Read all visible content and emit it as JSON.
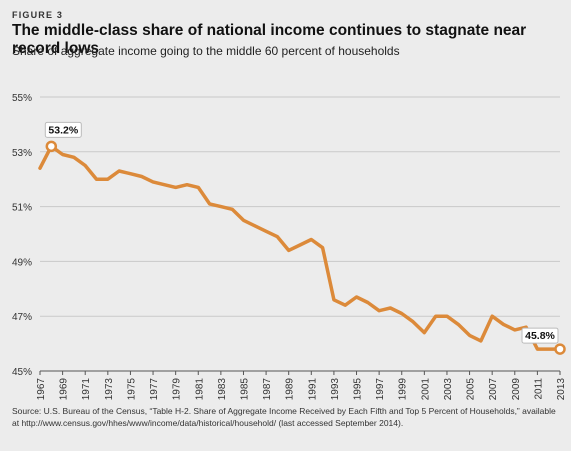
{
  "figure_label": "FIGURE 3",
  "title": "The middle-class share of national income continues to stagnate near record lows",
  "subtitle": "Share of aggregate income going to the middle 60 percent of households",
  "source": "Source: U.S. Bureau of the Census, “Table H-2. Share of Aggregate Income Received by Each Fifth and Top 5 Percent of Households,” available at http://www.census.gov/hhes/www/income/data/historical/household/ (last accessed September 2014).",
  "colors": {
    "line": "#dc8a3a",
    "background": "#ececec",
    "grid": "#c9c9c9"
  },
  "chart_data": {
    "type": "line",
    "xlabel": "",
    "ylabel": "",
    "ylim": [
      45,
      55
    ],
    "yticks": [
      45,
      47,
      49,
      51,
      53,
      55
    ],
    "ytick_labels": [
      "45%",
      "47%",
      "49%",
      "51%",
      "53%",
      "55%"
    ],
    "xticks": [
      1967,
      1969,
      1971,
      1973,
      1975,
      1977,
      1979,
      1981,
      1983,
      1985,
      1987,
      1989,
      1991,
      1993,
      1995,
      1997,
      1999,
      2001,
      2003,
      2005,
      2007,
      2009,
      2011,
      2013
    ],
    "grid": true,
    "series": [
      {
        "x": [
          1967,
          1968,
          1969,
          1970,
          1971,
          1972,
          1973,
          1974,
          1975,
          1976,
          1977,
          1978,
          1979,
          1980,
          1981,
          1982,
          1983,
          1984,
          1985,
          1986,
          1987,
          1988,
          1989,
          1990,
          1991,
          1992,
          1993,
          1994,
          1995,
          1996,
          1997,
          1998,
          1999,
          2000,
          2001,
          2002,
          2003,
          2004,
          2005,
          2006,
          2007,
          2008,
          2009,
          2010,
          2011,
          2012,
          2013
        ],
        "y": [
          52.4,
          53.2,
          52.9,
          52.8,
          52.5,
          52.0,
          52.0,
          52.3,
          52.2,
          52.1,
          51.9,
          51.8,
          51.7,
          51.8,
          51.7,
          51.1,
          51.0,
          50.9,
          50.5,
          50.3,
          50.1,
          49.9,
          49.4,
          49.6,
          49.8,
          49.5,
          47.6,
          47.4,
          47.7,
          47.5,
          47.2,
          47.3,
          47.1,
          46.8,
          46.4,
          47.0,
          47.0,
          46.7,
          46.3,
          46.1,
          47.0,
          46.7,
          46.5,
          46.6,
          45.8,
          45.8,
          45.8
        ]
      }
    ],
    "annotations": [
      {
        "x": 1968,
        "y": 53.2,
        "text": "53.2%"
      },
      {
        "x": 2013,
        "y": 45.8,
        "text": "45.8%"
      }
    ]
  }
}
